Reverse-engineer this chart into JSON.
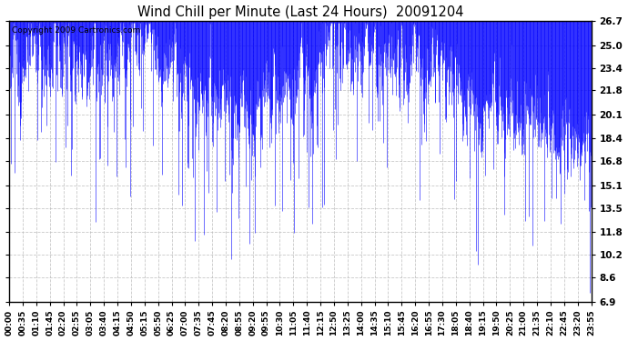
{
  "title": "Wind Chill per Minute (Last 24 Hours)  20091204",
  "copyright_text": "Copyright 2009 Cartronics.com",
  "line_color": "#0000FF",
  "bg_color": "#FFFFFF",
  "plot_bg_color": "#FFFFFF",
  "grid_color": "#BBBBBB",
  "yticks": [
    6.9,
    8.6,
    10.2,
    11.8,
    13.5,
    15.1,
    16.8,
    18.4,
    20.1,
    21.8,
    23.4,
    25.0,
    26.7
  ],
  "ylim": [
    6.9,
    26.7
  ],
  "xtick_labels": [
    "00:00",
    "00:35",
    "01:10",
    "01:45",
    "02:20",
    "02:55",
    "03:05",
    "03:40",
    "04:15",
    "04:50",
    "05:15",
    "05:50",
    "06:25",
    "07:00",
    "07:35",
    "07:45",
    "08:20",
    "08:55",
    "09:20",
    "09:55",
    "10:30",
    "11:05",
    "11:40",
    "12:15",
    "12:50",
    "13:25",
    "14:00",
    "14:35",
    "15:10",
    "15:45",
    "16:20",
    "16:55",
    "17:30",
    "18:05",
    "18:40",
    "19:15",
    "19:50",
    "20:25",
    "21:00",
    "21:35",
    "22:10",
    "22:45",
    "23:20",
    "23:55"
  ],
  "seed": 12,
  "num_points": 1440
}
